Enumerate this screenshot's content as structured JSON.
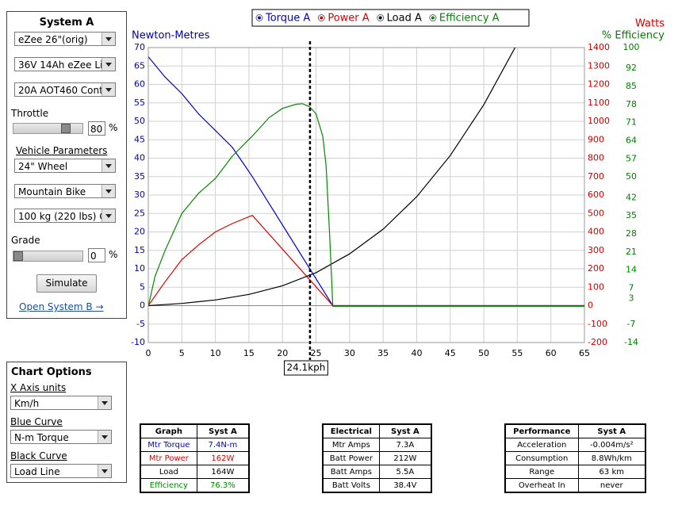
{
  "system_a": {
    "title": "System A",
    "selects": [
      "eZee 26\"(orig)",
      "36V 14Ah eZee Li",
      "20A AOT460 Cont"
    ],
    "throttle_label": "Throttle",
    "throttle_value": 80,
    "percent": "%",
    "vehicle_link": "Vehicle Parameters",
    "vehicle_selects": [
      "24\"  Wheel",
      "Mountain Bike",
      "100 kg (220 lbs) G"
    ],
    "grade_label": "Grade",
    "grade_value": 0,
    "simulate": "Simulate",
    "open_b": "Open System B →"
  },
  "chart_options": {
    "title": "Chart Options",
    "items": [
      {
        "label": "X Axis units",
        "value": "Km/h"
      },
      {
        "label": "Blue Curve",
        "value": "N-m Torque"
      },
      {
        "label": "Black Curve",
        "value": "Load Line"
      }
    ]
  },
  "chart_data": {
    "type": "line",
    "y_label": "Newton-Metres",
    "y2_label": "Watts",
    "y3_label": "% Efficiency",
    "axis_colors": {
      "y": "#0000b0",
      "y2": "#cc0000",
      "y3": "#008000"
    },
    "xlim": [
      0,
      65
    ],
    "xticks": [
      0,
      5,
      10,
      15,
      20,
      25,
      30,
      35,
      40,
      45,
      50,
      55,
      60,
      65
    ],
    "ylim": [
      -10,
      70
    ],
    "yticks": [
      -10,
      -5,
      0,
      5,
      10,
      15,
      20,
      25,
      30,
      35,
      40,
      45,
      50,
      55,
      60,
      65,
      70
    ],
    "y2lim": [
      -200,
      1400
    ],
    "y2ticks": [
      -200,
      -100,
      0,
      100,
      200,
      300,
      400,
      500,
      600,
      700,
      800,
      900,
      1000,
      1100,
      1200,
      1300,
      1400
    ],
    "y3lim": [
      -14,
      100
    ],
    "y3ticks": [
      -14,
      -7,
      3,
      7,
      14,
      21,
      28,
      35,
      42,
      50,
      57,
      64,
      71,
      78,
      85,
      92,
      100
    ],
    "grid": true,
    "cursor": {
      "value": 24.1,
      "label": "24.1kph"
    },
    "series": [
      {
        "name": "Torque A",
        "color": "#0000cc",
        "axis": "y",
        "x": [
          0,
          2.5,
          5,
          7.5,
          10,
          12.5,
          14,
          15.5,
          27.5,
          65
        ],
        "values": [
          67.5,
          62,
          57.5,
          52,
          47.5,
          43,
          39,
          35,
          0,
          0
        ]
      },
      {
        "name": "Power A",
        "color": "#dd0000",
        "axis": "y2",
        "x": [
          0,
          2.5,
          5,
          7.5,
          10,
          12.5,
          15.5,
          27.5,
          65
        ],
        "values": [
          0,
          130,
          250,
          330,
          400,
          445,
          490,
          0,
          0
        ]
      },
      {
        "name": "Load A",
        "color": "#000000",
        "axis": "y2",
        "x": [
          0,
          5,
          10,
          15,
          20,
          25,
          30,
          35,
          40,
          45,
          50,
          54.7
        ],
        "values": [
          0,
          12,
          31,
          61,
          108,
          179,
          281,
          415,
          591,
          814,
          1090,
          1402
        ]
      },
      {
        "name": "Efficiency A",
        "color": "#008800",
        "axis": "y3",
        "x": [
          0,
          1,
          2.5,
          5,
          7.5,
          10,
          12.5,
          15.5,
          18,
          20,
          22,
          23,
          24,
          25,
          26,
          26.5,
          27,
          27.5,
          65
        ],
        "values": [
          0,
          11.6,
          21.6,
          35.9,
          43.7,
          49.4,
          58,
          65.8,
          72.9,
          76.5,
          78.1,
          78.3,
          77.2,
          74.4,
          65.8,
          54.4,
          28.8,
          0,
          0
        ]
      }
    ]
  },
  "tables": [
    {
      "rows": [
        [
          "Graph",
          "Syst A"
        ],
        [
          "Mtr Torque",
          "7.4N-m"
        ],
        [
          "Mtr Power",
          "162W"
        ],
        [
          "Load",
          "164W"
        ],
        [
          "Efficiency",
          "76.3%"
        ]
      ],
      "row_colors": [
        "#000000",
        "#0000cc",
        "#dd0000",
        "#000000",
        "#008800"
      ]
    },
    {
      "rows": [
        [
          "Electrical",
          "Syst A"
        ],
        [
          "Mtr Amps",
          "7.3A"
        ],
        [
          "Batt Power",
          "212W"
        ],
        [
          "Batt Amps",
          "5.5A"
        ],
        [
          "Batt Volts",
          "38.4V"
        ]
      ]
    },
    {
      "rows": [
        [
          "Performance",
          "Syst A"
        ],
        [
          "Acceleration",
          "-0.004m/s²"
        ],
        [
          "Consumption",
          "8.8Wh/km"
        ],
        [
          "Range",
          "63 km"
        ],
        [
          "Overheat In",
          "never"
        ]
      ]
    }
  ]
}
